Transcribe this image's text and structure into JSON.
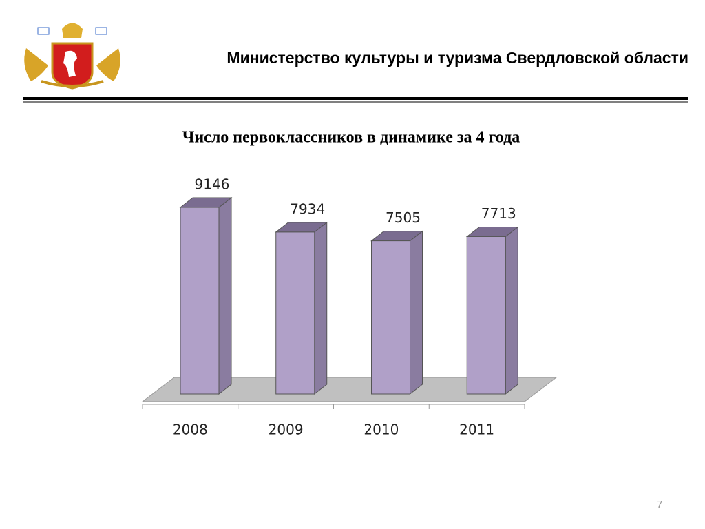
{
  "header": {
    "title": "Министерство культуры  и туризма Свердловской области"
  },
  "chart_data": {
    "type": "bar3d",
    "title": "Число первоклассников в динамике за 4 года",
    "categories": [
      "2008",
      "2009",
      "2010",
      "2011"
    ],
    "values": [
      9146,
      7934,
      7505,
      7713
    ],
    "color": "#b0a0c8"
  },
  "page_number": 7
}
